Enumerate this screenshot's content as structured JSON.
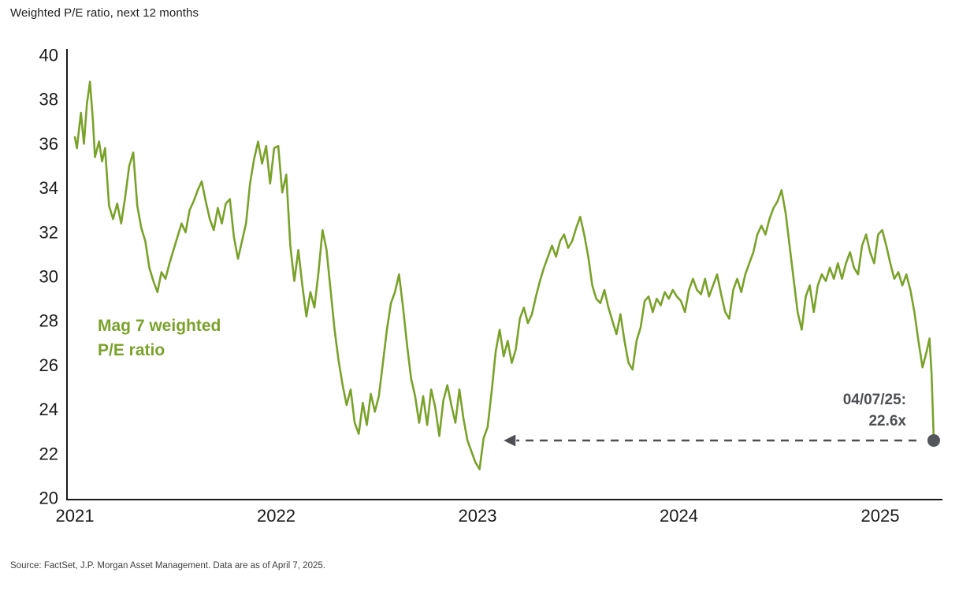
{
  "header": {
    "title": "Weighted P/E ratio, next 12 months"
  },
  "footer": {
    "source": "Source: FactSet, J.P. Morgan Asset Management. Data are as of April 7, 2025."
  },
  "annotations": {
    "series_label_line1": "Mag 7 weighted",
    "series_label_line2": "P/E ratio",
    "callout_line1": "04/07/25:",
    "callout_line2": "22.6x"
  },
  "chart_data": {
    "type": "line",
    "title": "Weighted P/E ratio, next 12 months",
    "xlabel": "",
    "ylabel": "Weighted P/E ratio, next 12 months",
    "x_ticks": [
      2021,
      2022,
      2023,
      2024,
      2025
    ],
    "y_ticks": [
      20,
      22,
      24,
      26,
      28,
      30,
      32,
      34,
      36,
      38,
      40
    ],
    "xlim": [
      2021.0,
      2025.3
    ],
    "ylim": [
      20,
      40
    ],
    "grid": false,
    "legend_position": "none",
    "colors": {
      "line": "#7aa22a",
      "marker": "#53565a",
      "arrow": "#4d4f53",
      "axis": "#1a1a1a"
    },
    "series": [
      {
        "name": "Mag 7 weighted P/E ratio",
        "color": "#7aa22a",
        "points": [
          [
            2021.0,
            36.3
          ],
          [
            2021.01,
            35.8
          ],
          [
            2021.03,
            37.4
          ],
          [
            2021.045,
            36.0
          ],
          [
            2021.06,
            37.8
          ],
          [
            2021.075,
            38.8
          ],
          [
            2021.09,
            37.0
          ],
          [
            2021.1,
            35.4
          ],
          [
            2021.12,
            36.1
          ],
          [
            2021.135,
            35.2
          ],
          [
            2021.15,
            35.8
          ],
          [
            2021.17,
            33.2
          ],
          [
            2021.19,
            32.6
          ],
          [
            2021.21,
            33.3
          ],
          [
            2021.23,
            32.4
          ],
          [
            2021.25,
            33.6
          ],
          [
            2021.27,
            35.0
          ],
          [
            2021.29,
            35.6
          ],
          [
            2021.31,
            33.2
          ],
          [
            2021.33,
            32.2
          ],
          [
            2021.35,
            31.6
          ],
          [
            2021.37,
            30.4
          ],
          [
            2021.39,
            29.8
          ],
          [
            2021.41,
            29.3
          ],
          [
            2021.43,
            30.2
          ],
          [
            2021.45,
            29.9
          ],
          [
            2021.47,
            30.6
          ],
          [
            2021.49,
            31.2
          ],
          [
            2021.51,
            31.8
          ],
          [
            2021.53,
            32.4
          ],
          [
            2021.55,
            32.0
          ],
          [
            2021.57,
            33.0
          ],
          [
            2021.59,
            33.4
          ],
          [
            2021.61,
            33.9
          ],
          [
            2021.63,
            34.3
          ],
          [
            2021.65,
            33.4
          ],
          [
            2021.67,
            32.6
          ],
          [
            2021.69,
            32.1
          ],
          [
            2021.71,
            33.1
          ],
          [
            2021.73,
            32.4
          ],
          [
            2021.75,
            33.3
          ],
          [
            2021.77,
            33.5
          ],
          [
            2021.79,
            31.8
          ],
          [
            2021.81,
            30.8
          ],
          [
            2021.83,
            31.6
          ],
          [
            2021.85,
            32.4
          ],
          [
            2021.87,
            34.2
          ],
          [
            2021.89,
            35.3
          ],
          [
            2021.91,
            36.1
          ],
          [
            2021.93,
            35.1
          ],
          [
            2021.95,
            35.9
          ],
          [
            2021.97,
            34.2
          ],
          [
            2021.99,
            35.8
          ],
          [
            2022.01,
            35.9
          ],
          [
            2022.03,
            33.8
          ],
          [
            2022.05,
            34.6
          ],
          [
            2022.07,
            31.4
          ],
          [
            2022.09,
            29.8
          ],
          [
            2022.11,
            31.2
          ],
          [
            2022.13,
            29.6
          ],
          [
            2022.15,
            28.2
          ],
          [
            2022.17,
            29.3
          ],
          [
            2022.19,
            28.6
          ],
          [
            2022.21,
            30.2
          ],
          [
            2022.23,
            32.1
          ],
          [
            2022.25,
            31.2
          ],
          [
            2022.27,
            29.4
          ],
          [
            2022.29,
            27.6
          ],
          [
            2022.31,
            26.2
          ],
          [
            2022.33,
            25.1
          ],
          [
            2022.35,
            24.2
          ],
          [
            2022.37,
            24.9
          ],
          [
            2022.39,
            23.4
          ],
          [
            2022.41,
            22.9
          ],
          [
            2022.43,
            24.3
          ],
          [
            2022.45,
            23.3
          ],
          [
            2022.47,
            24.7
          ],
          [
            2022.49,
            23.9
          ],
          [
            2022.51,
            24.6
          ],
          [
            2022.53,
            26.1
          ],
          [
            2022.55,
            27.6
          ],
          [
            2022.57,
            28.8
          ],
          [
            2022.59,
            29.3
          ],
          [
            2022.61,
            30.1
          ],
          [
            2022.63,
            28.6
          ],
          [
            2022.65,
            26.9
          ],
          [
            2022.67,
            25.4
          ],
          [
            2022.69,
            24.6
          ],
          [
            2022.71,
            23.4
          ],
          [
            2022.73,
            24.6
          ],
          [
            2022.75,
            23.3
          ],
          [
            2022.77,
            24.9
          ],
          [
            2022.79,
            24.1
          ],
          [
            2022.81,
            22.8
          ],
          [
            2022.83,
            24.4
          ],
          [
            2022.85,
            25.1
          ],
          [
            2022.87,
            24.2
          ],
          [
            2022.89,
            23.4
          ],
          [
            2022.91,
            24.9
          ],
          [
            2022.93,
            23.6
          ],
          [
            2022.95,
            22.6
          ],
          [
            2022.97,
            22.1
          ],
          [
            2022.99,
            21.6
          ],
          [
            2023.01,
            21.3
          ],
          [
            2023.03,
            22.7
          ],
          [
            2023.05,
            23.2
          ],
          [
            2023.07,
            24.8
          ],
          [
            2023.09,
            26.6
          ],
          [
            2023.11,
            27.6
          ],
          [
            2023.13,
            26.4
          ],
          [
            2023.15,
            27.1
          ],
          [
            2023.17,
            26.1
          ],
          [
            2023.19,
            26.7
          ],
          [
            2023.21,
            28.1
          ],
          [
            2023.23,
            28.6
          ],
          [
            2023.25,
            27.9
          ],
          [
            2023.27,
            28.3
          ],
          [
            2023.29,
            29.1
          ],
          [
            2023.31,
            29.8
          ],
          [
            2023.33,
            30.4
          ],
          [
            2023.35,
            30.9
          ],
          [
            2023.37,
            31.4
          ],
          [
            2023.39,
            30.9
          ],
          [
            2023.41,
            31.6
          ],
          [
            2023.43,
            31.9
          ],
          [
            2023.45,
            31.3
          ],
          [
            2023.47,
            31.6
          ],
          [
            2023.49,
            32.2
          ],
          [
            2023.51,
            32.7
          ],
          [
            2023.53,
            31.9
          ],
          [
            2023.55,
            30.9
          ],
          [
            2023.57,
            29.6
          ],
          [
            2023.59,
            29.0
          ],
          [
            2023.61,
            28.8
          ],
          [
            2023.63,
            29.4
          ],
          [
            2023.65,
            28.6
          ],
          [
            2023.67,
            28.0
          ],
          [
            2023.69,
            27.4
          ],
          [
            2023.71,
            28.3
          ],
          [
            2023.73,
            27.1
          ],
          [
            2023.75,
            26.1
          ],
          [
            2023.77,
            25.8
          ],
          [
            2023.79,
            27.1
          ],
          [
            2023.81,
            27.7
          ],
          [
            2023.83,
            28.9
          ],
          [
            2023.85,
            29.1
          ],
          [
            2023.87,
            28.4
          ],
          [
            2023.89,
            29.0
          ],
          [
            2023.91,
            28.7
          ],
          [
            2023.93,
            29.3
          ],
          [
            2023.95,
            29.0
          ],
          [
            2023.97,
            29.4
          ],
          [
            2023.99,
            29.1
          ],
          [
            2024.01,
            28.9
          ],
          [
            2024.03,
            28.4
          ],
          [
            2024.05,
            29.4
          ],
          [
            2024.07,
            29.9
          ],
          [
            2024.09,
            29.4
          ],
          [
            2024.11,
            29.2
          ],
          [
            2024.13,
            29.9
          ],
          [
            2024.15,
            29.1
          ],
          [
            2024.17,
            29.6
          ],
          [
            2024.19,
            30.1
          ],
          [
            2024.21,
            29.2
          ],
          [
            2024.23,
            28.4
          ],
          [
            2024.25,
            28.1
          ],
          [
            2024.27,
            29.4
          ],
          [
            2024.29,
            29.9
          ],
          [
            2024.31,
            29.3
          ],
          [
            2024.33,
            30.1
          ],
          [
            2024.35,
            30.6
          ],
          [
            2024.37,
            31.1
          ],
          [
            2024.39,
            31.9
          ],
          [
            2024.41,
            32.3
          ],
          [
            2024.43,
            31.9
          ],
          [
            2024.45,
            32.6
          ],
          [
            2024.47,
            33.1
          ],
          [
            2024.49,
            33.4
          ],
          [
            2024.51,
            33.9
          ],
          [
            2024.53,
            32.9
          ],
          [
            2024.55,
            31.4
          ],
          [
            2024.57,
            29.9
          ],
          [
            2024.59,
            28.4
          ],
          [
            2024.61,
            27.6
          ],
          [
            2024.63,
            29.1
          ],
          [
            2024.65,
            29.6
          ],
          [
            2024.67,
            28.4
          ],
          [
            2024.69,
            29.6
          ],
          [
            2024.71,
            30.1
          ],
          [
            2024.73,
            29.8
          ],
          [
            2024.75,
            30.4
          ],
          [
            2024.77,
            29.9
          ],
          [
            2024.79,
            30.6
          ],
          [
            2024.81,
            29.9
          ],
          [
            2024.83,
            30.6
          ],
          [
            2024.85,
            31.1
          ],
          [
            2024.87,
            30.4
          ],
          [
            2024.89,
            30.1
          ],
          [
            2024.91,
            31.4
          ],
          [
            2024.93,
            31.9
          ],
          [
            2024.95,
            31.1
          ],
          [
            2024.97,
            30.6
          ],
          [
            2024.99,
            31.9
          ],
          [
            2025.01,
            32.1
          ],
          [
            2025.03,
            31.4
          ],
          [
            2025.05,
            30.6
          ],
          [
            2025.07,
            29.9
          ],
          [
            2025.09,
            30.2
          ],
          [
            2025.11,
            29.6
          ],
          [
            2025.13,
            30.1
          ],
          [
            2025.15,
            29.4
          ],
          [
            2025.17,
            28.4
          ],
          [
            2025.19,
            27.1
          ],
          [
            2025.21,
            25.9
          ],
          [
            2025.23,
            26.6
          ],
          [
            2025.245,
            27.2
          ],
          [
            2025.255,
            25.6
          ],
          [
            2025.266,
            22.6
          ]
        ]
      }
    ],
    "annotations": [
      {
        "type": "endpoint_marker",
        "x": 2025.266,
        "y": 22.6,
        "label": "04/07/25: 22.6x"
      },
      {
        "type": "arrow",
        "style": "dashed",
        "from_x": 2025.18,
        "to_x": 2023.13,
        "y": 22.6
      }
    ]
  }
}
